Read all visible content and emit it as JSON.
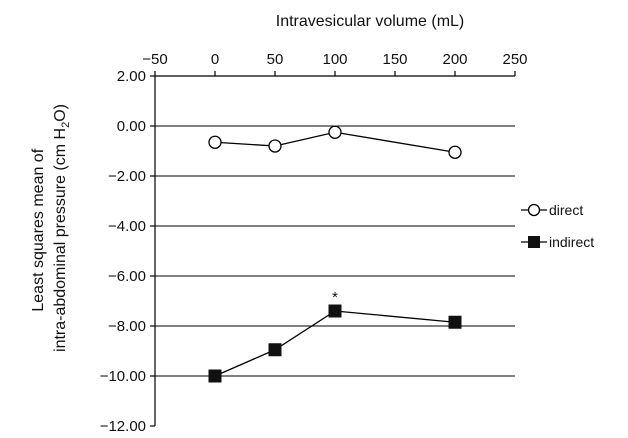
{
  "chart_data": {
    "type": "line",
    "xlabel": "Intravesicular volume (mL)",
    "ylabel_parts": [
      "Least squares mean of",
      "intra-abdominal pressure (cm H",
      "2",
      "O)"
    ],
    "xlim": [
      -50,
      250
    ],
    "ylim": [
      -12,
      2
    ],
    "x_ticks": [
      -50,
      0,
      50,
      100,
      150,
      200,
      250
    ],
    "x_tick_labels": [
      "−50",
      "0",
      "50",
      "100",
      "150",
      "200",
      "250"
    ],
    "y_ticks": [
      2,
      0,
      -2,
      -4,
      -6,
      -8,
      -10,
      -12
    ],
    "y_tick_labels": [
      "2.00",
      "0.00",
      "−2.00",
      "−4.00",
      "−6.00",
      "−8.00",
      "−10.00",
      "−12.00"
    ],
    "grid": "horizontal",
    "legend_position": "right",
    "series": [
      {
        "name": "direct",
        "marker": "open-circle",
        "x": [
          0,
          50,
          100,
          200
        ],
        "y": [
          -0.65,
          -0.8,
          -0.25,
          -1.05
        ]
      },
      {
        "name": "indirect",
        "marker": "filled-square",
        "x": [
          0,
          50,
          100,
          200
        ],
        "y": [
          -10.0,
          -8.95,
          -7.4,
          -7.85
        ]
      }
    ],
    "annotations": [
      {
        "text": "*",
        "x": 100,
        "y": -7.4
      }
    ]
  }
}
